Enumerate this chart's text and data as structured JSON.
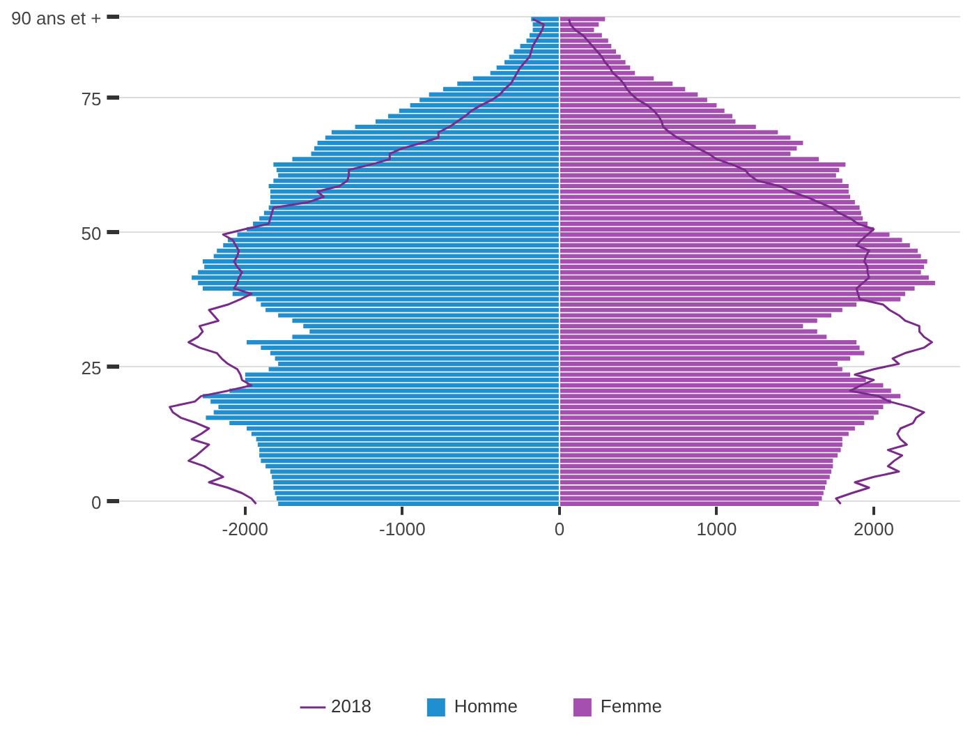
{
  "chart_data": {
    "type": "bar",
    "orientation": "horizontal",
    "stacked": true,
    "legend": "bottom",
    "grid": "y",
    "marker": "none",
    "line_style": "solid",
    "categories": [
      "90 ans et +",
      null,
      null,
      null,
      null,
      null,
      null,
      null,
      null,
      null,
      null,
      null,
      null,
      null,
      null,
      "75",
      null,
      null,
      null,
      null,
      null,
      null,
      null,
      null,
      null,
      null,
      null,
      null,
      null,
      null,
      null,
      null,
      null,
      null,
      null,
      null,
      null,
      null,
      null,
      null,
      "50",
      null,
      null,
      null,
      null,
      null,
      null,
      null,
      null,
      null,
      null,
      null,
      null,
      null,
      null,
      null,
      null,
      null,
      null,
      null,
      null,
      null,
      null,
      null,
      null,
      "25",
      null,
      null,
      null,
      null,
      null,
      null,
      null,
      null,
      null,
      null,
      null,
      null,
      null,
      null,
      null,
      null,
      null,
      null,
      null,
      null,
      null,
      null,
      null,
      null,
      "0"
    ],
    "xlim": [
      -2800,
      2550
    ],
    "xticks": [
      -2000,
      -1000,
      0,
      1000,
      2000
    ],
    "series": [
      {
        "name": "Homme",
        "color": "#1f8fcf",
        "values": [
          -180,
          -170,
          -170,
          -190,
          -210,
          -250,
          -290,
          -320,
          -350,
          -400,
          -440,
          -550,
          -650,
          -740,
          -830,
          -890,
          -950,
          -1020,
          -1090,
          -1170,
          -1300,
          -1450,
          -1490,
          -1540,
          -1560,
          -1580,
          -1700,
          -1820,
          -1800,
          -1790,
          -1820,
          -1850,
          -1840,
          -1840,
          -1840,
          -1850,
          -1880,
          -1910,
          -1950,
          -1990,
          -2050,
          -2110,
          -2140,
          -2180,
          -2200,
          -2270,
          -2260,
          -2300,
          -2340,
          -2300,
          -2270,
          -2080,
          -1930,
          -1900,
          -1870,
          -1790,
          -1700,
          -1630,
          -1590,
          -1700,
          -1990,
          -1900,
          -1840,
          -1810,
          -1790,
          -1850,
          -2000,
          -2000,
          -1990,
          -2100,
          -2270,
          -2220,
          -2170,
          -2200,
          -2250,
          -2100,
          -1990,
          -1960,
          -1930,
          -1920,
          -1910,
          -1910,
          -1900,
          -1870,
          -1840,
          -1830,
          -1820,
          -1820,
          -1810,
          -1800,
          -1790
        ]
      },
      {
        "name": "Femme",
        "color": "#a550b0",
        "values": [
          290,
          250,
          220,
          270,
          310,
          330,
          360,
          390,
          420,
          450,
          480,
          600,
          720,
          800,
          880,
          940,
          1000,
          1050,
          1100,
          1120,
          1250,
          1390,
          1470,
          1550,
          1510,
          1470,
          1650,
          1820,
          1780,
          1760,
          1800,
          1840,
          1840,
          1850,
          1880,
          1910,
          1920,
          1930,
          1960,
          2000,
          2100,
          2180,
          2230,
          2280,
          2300,
          2340,
          2320,
          2300,
          2350,
          2390,
          2260,
          2200,
          2170,
          1890,
          1800,
          1730,
          1640,
          1550,
          1640,
          1700,
          1890,
          1910,
          1940,
          1850,
          1770,
          1800,
          1850,
          1950,
          2060,
          2110,
          2170,
          2110,
          2060,
          2030,
          2000,
          1940,
          1880,
          1840,
          1800,
          1800,
          1790,
          1770,
          1740,
          1740,
          1730,
          1720,
          1700,
          1690,
          1680,
          1670,
          1650
        ]
      },
      {
        "name": "2018",
        "type": "line",
        "color": "#7a2a8a",
        "values": [
          -170,
          -100,
          -110,
          -130,
          -150,
          -170,
          -180,
          -190,
          -220,
          -250,
          -270,
          -290,
          -310,
          -350,
          -380,
          -430,
          -500,
          -560,
          -600,
          -650,
          -700,
          -770,
          -770,
          -880,
          -1000,
          -1080,
          -1080,
          -1200,
          -1340,
          -1340,
          -1350,
          -1400,
          -1540,
          -1500,
          -1600,
          -1820,
          -1830,
          -1840,
          -1850,
          -2000,
          -2140,
          -2080,
          -2060,
          -2040,
          -2050,
          -2070,
          -2050,
          -2020,
          -2040,
          -2050,
          -2070,
          -1960,
          -2030,
          -2110,
          -2230,
          -2200,
          -2170,
          -2290,
          -2270,
          -2300,
          -2360,
          -2290,
          -2180,
          -2150,
          -2110,
          -2050,
          -2030,
          -2020,
          -1960,
          -2110,
          -2280,
          -2320,
          -2480,
          -2460,
          -2410,
          -2310,
          -2230,
          -2280,
          -2340,
          -2230,
          -2270,
          -2310,
          -2360,
          -2260,
          -2200,
          -2140,
          -2230,
          -2110,
          -2020,
          -1960,
          -1930
        ]
      },
      {
        "type": "line",
        "color": "#7a2a8a",
        "values": [
          60,
          70,
          100,
          150,
          180,
          210,
          240,
          270,
          290,
          320,
          340,
          380,
          410,
          430,
          460,
          500,
          560,
          600,
          630,
          650,
          660,
          700,
          750,
          820,
          880,
          950,
          1000,
          1100,
          1180,
          1210,
          1260,
          1400,
          1470,
          1570,
          1650,
          1730,
          1780,
          1850,
          1900,
          2000,
          1960,
          1920,
          1890,
          1970,
          1950,
          1940,
          1960,
          1960,
          1970,
          1930,
          1890,
          1900,
          1910,
          2060,
          2100,
          2160,
          2200,
          2290,
          2290,
          2320,
          2370,
          2320,
          2200,
          2120,
          2160,
          2000,
          1880,
          2000,
          1920,
          1850,
          2030,
          2100,
          2230,
          2320,
          2270,
          2250,
          2170,
          2150,
          2170,
          2210,
          2090,
          2180,
          2130,
          2090,
          2160,
          2000,
          1880,
          1970,
          1860,
          1760,
          1790
        ]
      }
    ]
  }
}
